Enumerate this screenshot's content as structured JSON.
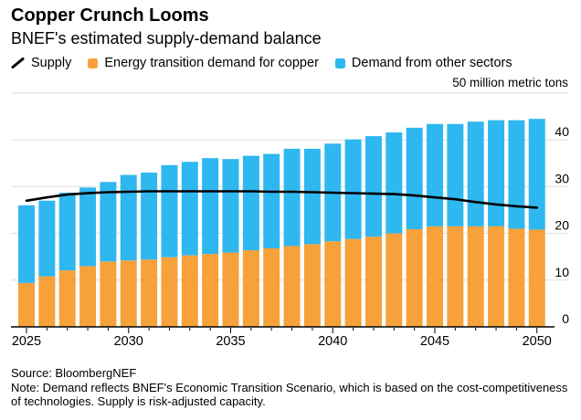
{
  "header": {
    "title": "Copper Crunch Looms",
    "subtitle": "BNEF's estimated supply-demand balance"
  },
  "legend": [
    {
      "label": "Supply",
      "icon": "line",
      "color": "#000000"
    },
    {
      "label": "Energy transition demand for copper",
      "icon": "square",
      "color": "#F7A13B"
    },
    {
      "label": "Demand from other sectors",
      "icon": "square",
      "color": "#2FB7F0"
    }
  ],
  "chart_data": {
    "type": "bar",
    "stacked": true,
    "unit_label": "50 million metric tons",
    "x": [
      2025,
      2026,
      2027,
      2028,
      2029,
      2030,
      2031,
      2032,
      2033,
      2034,
      2035,
      2036,
      2037,
      2038,
      2039,
      2040,
      2041,
      2042,
      2043,
      2044,
      2045,
      2046,
      2047,
      2048,
      2049,
      2050
    ],
    "series": [
      {
        "name": "Energy transition demand for copper",
        "type": "bar",
        "color": "#F7A13B",
        "values": [
          9.4,
          10.8,
          12.1,
          13.0,
          14.0,
          14.2,
          14.4,
          14.9,
          15.3,
          15.6,
          15.9,
          16.4,
          16.8,
          17.3,
          17.7,
          18.3,
          18.8,
          19.3,
          20.0,
          20.9,
          21.5,
          21.5,
          21.5,
          21.5,
          21.0,
          20.8
        ]
      },
      {
        "name": "Demand from other sectors",
        "type": "bar",
        "color": "#2FB7F0",
        "values": [
          16.6,
          16.2,
          16.6,
          16.8,
          17.0,
          18.3,
          18.6,
          19.7,
          20.0,
          20.5,
          20.0,
          20.2,
          20.2,
          20.8,
          20.4,
          20.9,
          21.3,
          21.5,
          21.6,
          21.7,
          21.9,
          21.9,
          22.4,
          22.7,
          23.2,
          23.7
        ]
      },
      {
        "name": "Supply",
        "type": "line",
        "color": "#000000",
        "values": [
          27.0,
          27.7,
          28.3,
          28.6,
          28.8,
          28.9,
          29.0,
          29.0,
          29.0,
          29.0,
          29.0,
          29.0,
          28.9,
          28.9,
          28.8,
          28.7,
          28.6,
          28.5,
          28.4,
          28.1,
          27.7,
          27.3,
          26.7,
          26.2,
          25.8,
          25.5
        ]
      }
    ],
    "ylim": [
      0,
      50
    ],
    "yticks": [
      0,
      10,
      20,
      30,
      40
    ],
    "ygridlines": [
      10,
      20,
      30,
      40,
      50
    ],
    "xticks_labeled": [
      2025,
      2030,
      2035,
      2040,
      2045,
      2050
    ],
    "grid": true,
    "legend_position": "top",
    "gridline_color": "#DEDEDE",
    "axis_color": "#000000"
  },
  "footer": {
    "source": "Source: BloombergNEF",
    "note": "Note: Demand reflects BNEF's Economic Transition Scenario, which is based on the cost-competitiveness of technologies. Supply is risk-adjusted capacity."
  }
}
